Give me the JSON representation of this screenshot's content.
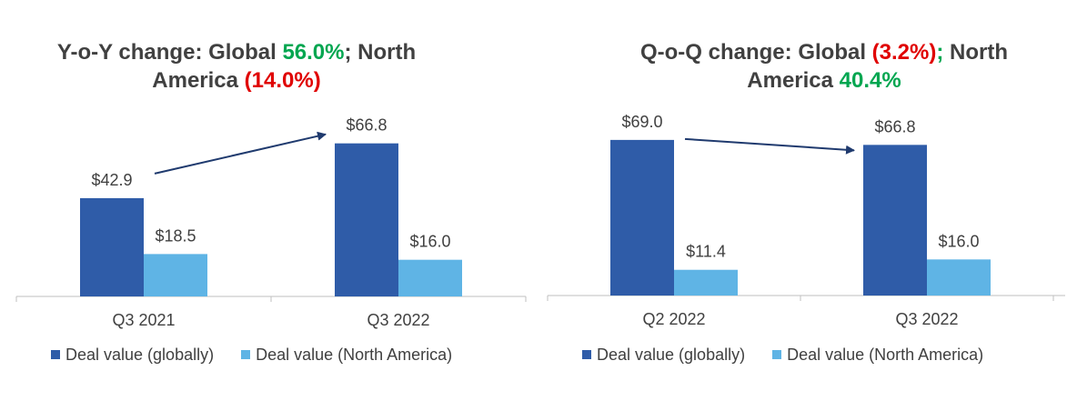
{
  "chart_data": [
    {
      "type": "bar",
      "title_parts": [
        {
          "text": "Y-o-Y change: Global ",
          "tone": "neutral"
        },
        {
          "text": "56.0%",
          "tone": "pos"
        },
        {
          "text": "; North America ",
          "tone": "neutral"
        },
        {
          "text": "(14.0%)",
          "tone": "neg"
        }
      ],
      "categories": [
        "Q3 2021",
        "Q3 2022"
      ],
      "series": [
        {
          "name": "Deal value (globally)",
          "color": "#2f5ca8",
          "values": [
            42.9,
            66.8
          ],
          "labels": [
            "$42.9",
            "$66.8"
          ]
        },
        {
          "name": "Deal value (North America)",
          "color": "#5fb4e5",
          "values": [
            18.5,
            16.0
          ],
          "labels": [
            "$18.5",
            "$16.0"
          ]
        }
      ],
      "ylim": [
        0,
        75
      ],
      "annotation": "arrow from first to second Deal value (globally) bar"
    },
    {
      "type": "bar",
      "title_parts": [
        {
          "text": "Q-o-Q change: Global ",
          "tone": "neutral"
        },
        {
          "text": "(3.2%)",
          "tone": "neg"
        },
        {
          "text": "; ",
          "tone": "pos"
        },
        {
          "text": "North America ",
          "tone": "neutral"
        },
        {
          "text": "40.4%",
          "tone": "pos"
        }
      ],
      "categories": [
        "Q2 2022",
        "Q3 2022"
      ],
      "series": [
        {
          "name": "Deal value (globally)",
          "color": "#2f5ca8",
          "values": [
            69.0,
            66.8
          ],
          "labels": [
            "$69.0",
            "$66.8"
          ]
        },
        {
          "name": "Deal value (North America)",
          "color": "#5fb4e5",
          "values": [
            11.4,
            16.0
          ],
          "labels": [
            "$11.4",
            "$16.0"
          ]
        }
      ],
      "ylim": [
        0,
        75
      ],
      "annotation": "arrow from first to second Deal value (globally) bar"
    }
  ]
}
